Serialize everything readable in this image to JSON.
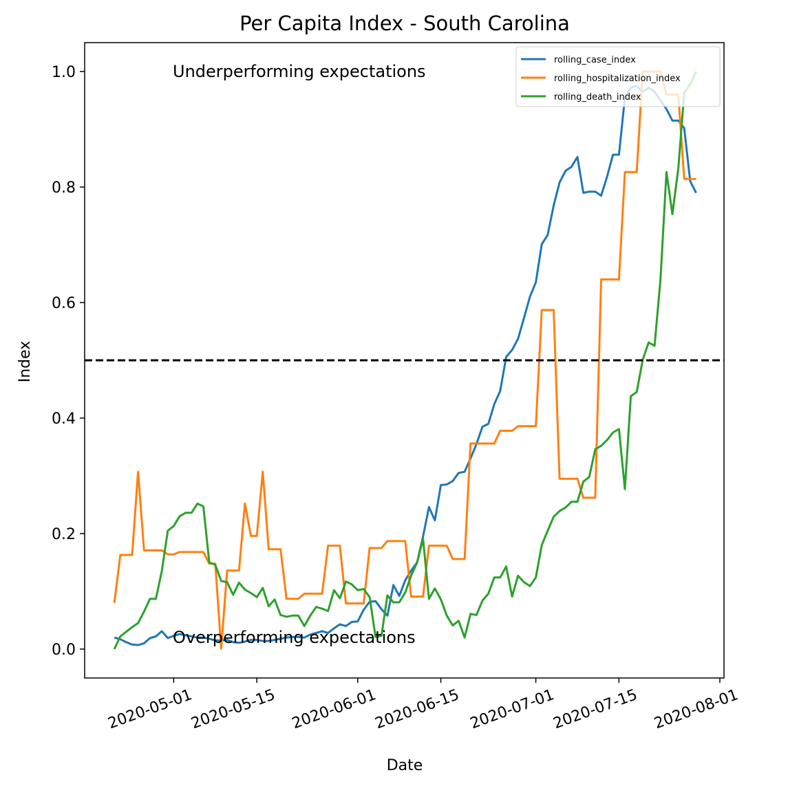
{
  "chart_data": {
    "type": "line",
    "title": "Per Capita Index - South Carolina",
    "xlabel": "Date",
    "ylabel": "Index",
    "ylim": [
      -0.05,
      1.05
    ],
    "xlim": [
      "2020-04-16",
      "2020-08-01"
    ],
    "x_start_date": "2020-04-21",
    "x_ticks": [
      "2020-05-01",
      "2020-05-15",
      "2020-06-01",
      "2020-06-15",
      "2020-07-01",
      "2020-07-15",
      "2020-08-01"
    ],
    "y_ticks": [
      "0.0",
      "0.2",
      "0.4",
      "0.6",
      "0.8",
      "1.0"
    ],
    "threshold": 0.5,
    "annotations": {
      "upper": "Underperforming expectations",
      "lower": "Overperforming expectations"
    },
    "legend_position": "upper right",
    "grid": false,
    "series": [
      {
        "name": "rolling_case_index",
        "color": "#1f77b4",
        "values": [
          0.02,
          0.017,
          0.012,
          0.008,
          0.007,
          0.01,
          0.019,
          0.022,
          0.031,
          0.019,
          0.023,
          0.026,
          0.024,
          0.022,
          0.02,
          0.02,
          0.018,
          0.015,
          0.015,
          0.016,
          0.012,
          0.011,
          0.013,
          0.016,
          0.016,
          0.014,
          0.014,
          0.016,
          0.018,
          0.02,
          0.021,
          0.021,
          0.02,
          0.025,
          0.028,
          0.031,
          0.028,
          0.036,
          0.043,
          0.04,
          0.047,
          0.048,
          0.068,
          0.082,
          0.083,
          0.069,
          0.058,
          0.111,
          0.092,
          0.119,
          0.136,
          0.15,
          0.195,
          0.246,
          0.223,
          0.284,
          0.285,
          0.291,
          0.305,
          0.307,
          0.33,
          0.355,
          0.385,
          0.39,
          0.424,
          0.447,
          0.506,
          0.518,
          0.537,
          0.573,
          0.61,
          0.635,
          0.701,
          0.717,
          0.768,
          0.808,
          0.828,
          0.835,
          0.852,
          0.79,
          0.792,
          0.792,
          0.785,
          0.818,
          0.856,
          0.856,
          0.955,
          0.972,
          0.975,
          0.965,
          0.972,
          0.965,
          0.95,
          0.935,
          0.915,
          0.915,
          0.902,
          0.81,
          0.79
        ]
      },
      {
        "name": "rolling_hospitalization_index",
        "color": "#ff7f0e",
        "values": [
          0.08,
          0.163,
          0.163,
          0.163,
          0.307,
          0.171,
          0.171,
          0.171,
          0.171,
          0.164,
          0.164,
          0.168,
          0.168,
          0.168,
          0.168,
          0.168,
          0.148,
          0.148,
          0.001,
          0.136,
          0.136,
          0.136,
          0.252,
          0.196,
          0.196,
          0.307,
          0.173,
          0.173,
          0.173,
          0.087,
          0.087,
          0.087,
          0.096,
          0.096,
          0.096,
          0.096,
          0.179,
          0.179,
          0.179,
          0.079,
          0.079,
          0.079,
          0.079,
          0.175,
          0.175,
          0.175,
          0.187,
          0.187,
          0.187,
          0.187,
          0.091,
          0.091,
          0.091,
          0.179,
          0.179,
          0.179,
          0.179,
          0.156,
          0.156,
          0.156,
          0.356,
          0.356,
          0.356,
          0.356,
          0.356,
          0.378,
          0.378,
          0.378,
          0.386,
          0.386,
          0.386,
          0.386,
          0.587,
          0.587,
          0.587,
          0.295,
          0.295,
          0.295,
          0.295,
          0.262,
          0.262,
          0.262,
          0.64,
          0.64,
          0.64,
          0.64,
          0.826,
          0.826,
          0.826,
          1.0,
          1.0,
          1.0,
          1.0,
          0.96,
          0.96,
          0.96,
          0.814,
          0.814,
          0.814
        ]
      },
      {
        "name": "rolling_death_index",
        "color": "#2ca02c",
        "values": [
          0.0,
          0.022,
          0.03,
          0.038,
          0.045,
          0.065,
          0.087,
          0.087,
          0.135,
          0.205,
          0.213,
          0.23,
          0.236,
          0.236,
          0.252,
          0.247,
          0.15,
          0.146,
          0.118,
          0.116,
          0.094,
          0.115,
          0.103,
          0.097,
          0.09,
          0.106,
          0.074,
          0.086,
          0.059,
          0.056,
          0.058,
          0.058,
          0.04,
          0.058,
          0.073,
          0.07,
          0.066,
          0.102,
          0.088,
          0.117,
          0.112,
          0.102,
          0.104,
          0.09,
          0.021,
          0.023,
          0.093,
          0.081,
          0.081,
          0.098,
          0.127,
          0.15,
          0.191,
          0.087,
          0.105,
          0.086,
          0.058,
          0.041,
          0.049,
          0.02,
          0.061,
          0.059,
          0.084,
          0.096,
          0.124,
          0.124,
          0.143,
          0.091,
          0.127,
          0.116,
          0.109,
          0.124,
          0.18,
          0.205,
          0.229,
          0.239,
          0.245,
          0.255,
          0.255,
          0.29,
          0.298,
          0.346,
          0.352,
          0.362,
          0.375,
          0.381,
          0.277,
          0.438,
          0.445,
          0.501,
          0.531,
          0.525,
          0.64,
          0.826,
          0.753,
          0.832,
          0.963,
          0.978,
          1.0
        ]
      }
    ]
  }
}
